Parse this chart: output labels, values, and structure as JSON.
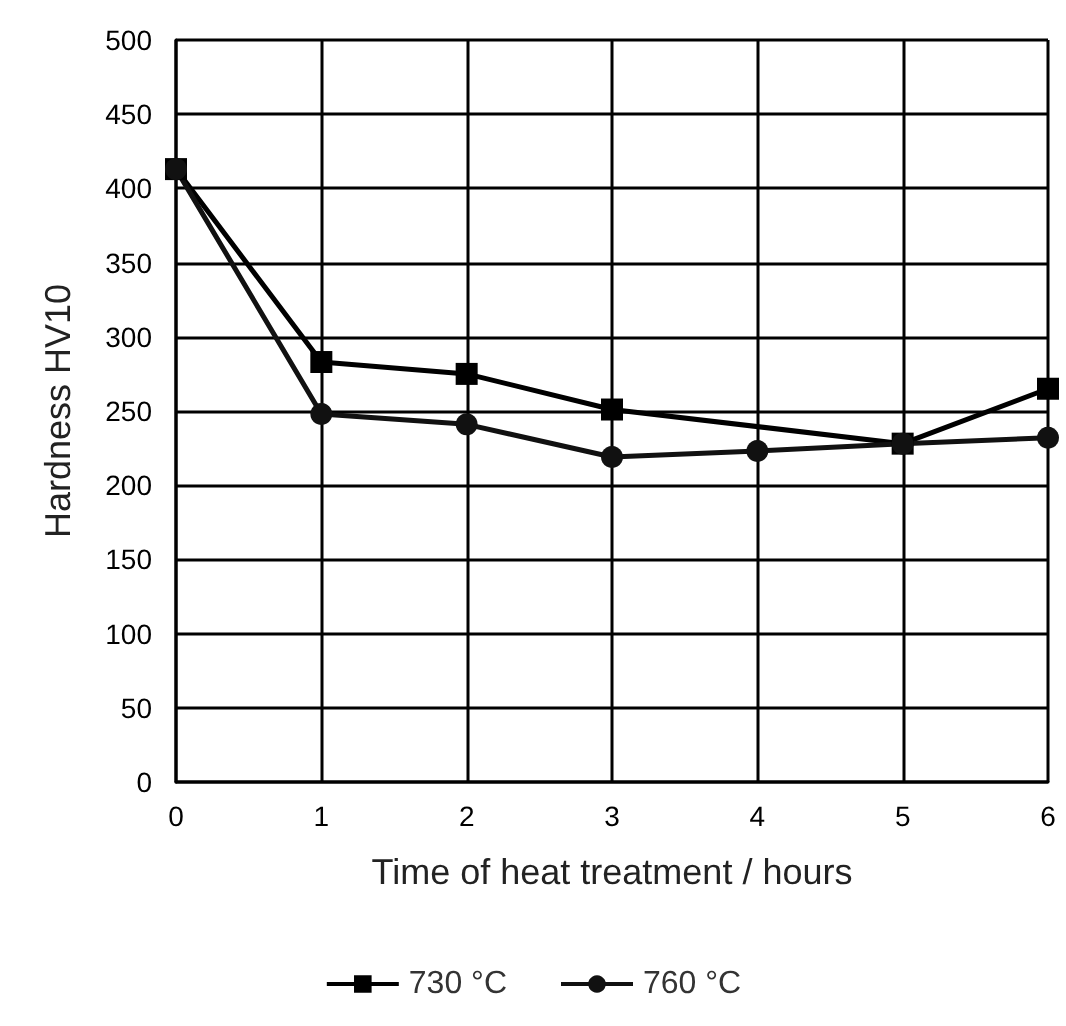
{
  "chart_data": {
    "type": "line",
    "xlabel": "Time of heat treatment / hours",
    "ylabel": "Hardness HV10",
    "xlim": [
      0,
      6
    ],
    "xticks": [
      0,
      1,
      2,
      3,
      4,
      5,
      6
    ],
    "ylim": [
      0,
      500
    ],
    "yticks": [
      0,
      50,
      100,
      150,
      200,
      250,
      300,
      350,
      400,
      450,
      500
    ],
    "series": [
      {
        "name": "730 °C",
        "color": "#000000",
        "marker": "square",
        "x": [
          0,
          1,
          2,
          3,
          5,
          6
        ],
        "values": [
          413,
          283,
          275,
          251,
          228,
          265
        ]
      },
      {
        "name": "760 °C",
        "color": "#111111",
        "marker": "circle",
        "x": [
          0,
          1,
          2,
          3,
          4,
          5,
          6
        ],
        "values": [
          413,
          248,
          241,
          219,
          223,
          228,
          232
        ]
      }
    ],
    "grid": true,
    "legend": "bottom",
    "line_style": "solid"
  }
}
